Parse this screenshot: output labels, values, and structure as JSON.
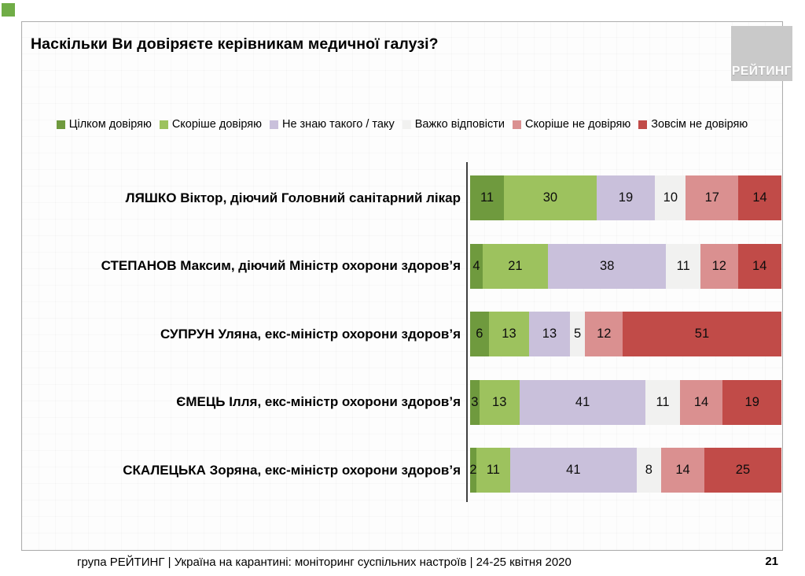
{
  "page": {
    "title": "Наскільки Ви довіряєте керівникам медичної галузі?",
    "logo_text": "РЕЙТИНГ",
    "footer_text": "група РЕЙТИНГ | Україна на карантині: моніторинг суспільних настроїв | 24-25 квітня  2020",
    "page_number": "21",
    "accent_color": "#70AD47",
    "logo_bg_color": "#C9C9C9",
    "frame_border_color": "#ADADAD",
    "axis_color": "#404040"
  },
  "chart_data": {
    "type": "bar",
    "stacked": true,
    "orientation": "horizontal",
    "title": "Наскільки Ви довіряєте керівникам медичної галузі?",
    "legend_position": "top",
    "value_labels": "inside",
    "unit": "percent",
    "xlim": [
      0,
      100
    ],
    "grid": false,
    "categories": [
      "ЛЯШКО Віктор, діючий Головний санітарний лікар",
      "СТЕПАНОВ Максим, діючий Міністр охорони здоров’я",
      "СУПРУН Уляна, екс-міністр охорони здоров’я",
      "ЄМЕЦЬ Ілля, екс-міністр охорони здоров’я",
      "СКАЛЕЦЬКА Зоряна, екс-міністр охорони здоров’я"
    ],
    "series": [
      {
        "name": "Цілком довіряю",
        "color": "#6F9A3E",
        "values": [
          11,
          4,
          6,
          3,
          2
        ]
      },
      {
        "name": "Скоріше довіряю",
        "color": "#9DC25E",
        "values": [
          30,
          21,
          13,
          13,
          11
        ]
      },
      {
        "name": "Не знаю такого / таку",
        "color": "#C9C0DB",
        "values": [
          19,
          38,
          13,
          41,
          41
        ]
      },
      {
        "name": "Важко відповісти",
        "color": "#F1F1F0",
        "values": [
          10,
          11,
          5,
          11,
          8
        ]
      },
      {
        "name": "Скоріше не довіряю",
        "color": "#DA9090",
        "values": [
          17,
          12,
          12,
          14,
          14
        ]
      },
      {
        "name": "Зовсім не довіряю",
        "color": "#C14B48",
        "values": [
          14,
          14,
          51,
          19,
          25
        ]
      }
    ]
  }
}
